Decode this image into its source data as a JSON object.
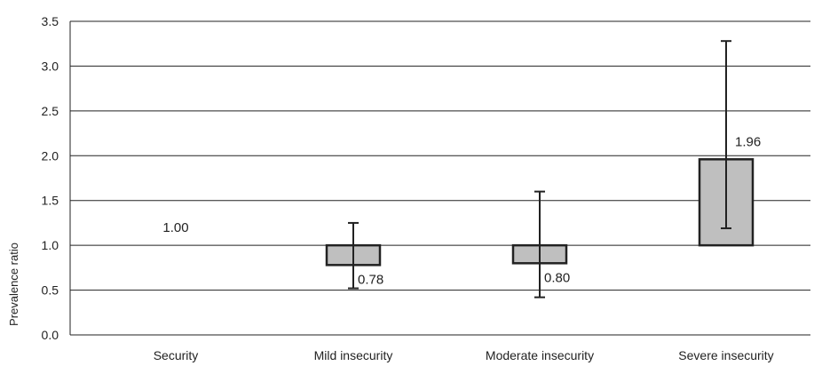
{
  "chart_data": {
    "type": "bar",
    "ylabel": "Prevalence ratio",
    "xlabel": "",
    "ylim": [
      0,
      3.5
    ],
    "yticks": [
      "0.0",
      "0.5",
      "1.0",
      "1.5",
      "2.0",
      "2.5",
      "3.0",
      "3.5"
    ],
    "grid": true,
    "baseline": 1.0,
    "categories": [
      "Security",
      "Mild insecurity",
      "Moderate insecurity",
      "Severe insecurity"
    ],
    "values": [
      1.0,
      0.78,
      0.8,
      1.96
    ],
    "value_labels": [
      "1.00",
      "0.78",
      "0.80",
      "1.96"
    ],
    "ci_lower": [
      null,
      0.52,
      0.42,
      1.19
    ],
    "ci_upper": [
      null,
      1.25,
      1.6,
      3.28
    ],
    "colors": {
      "bar_fill": "#bfbfbf",
      "bar_stroke": "#222222",
      "grid": "#222222"
    }
  }
}
